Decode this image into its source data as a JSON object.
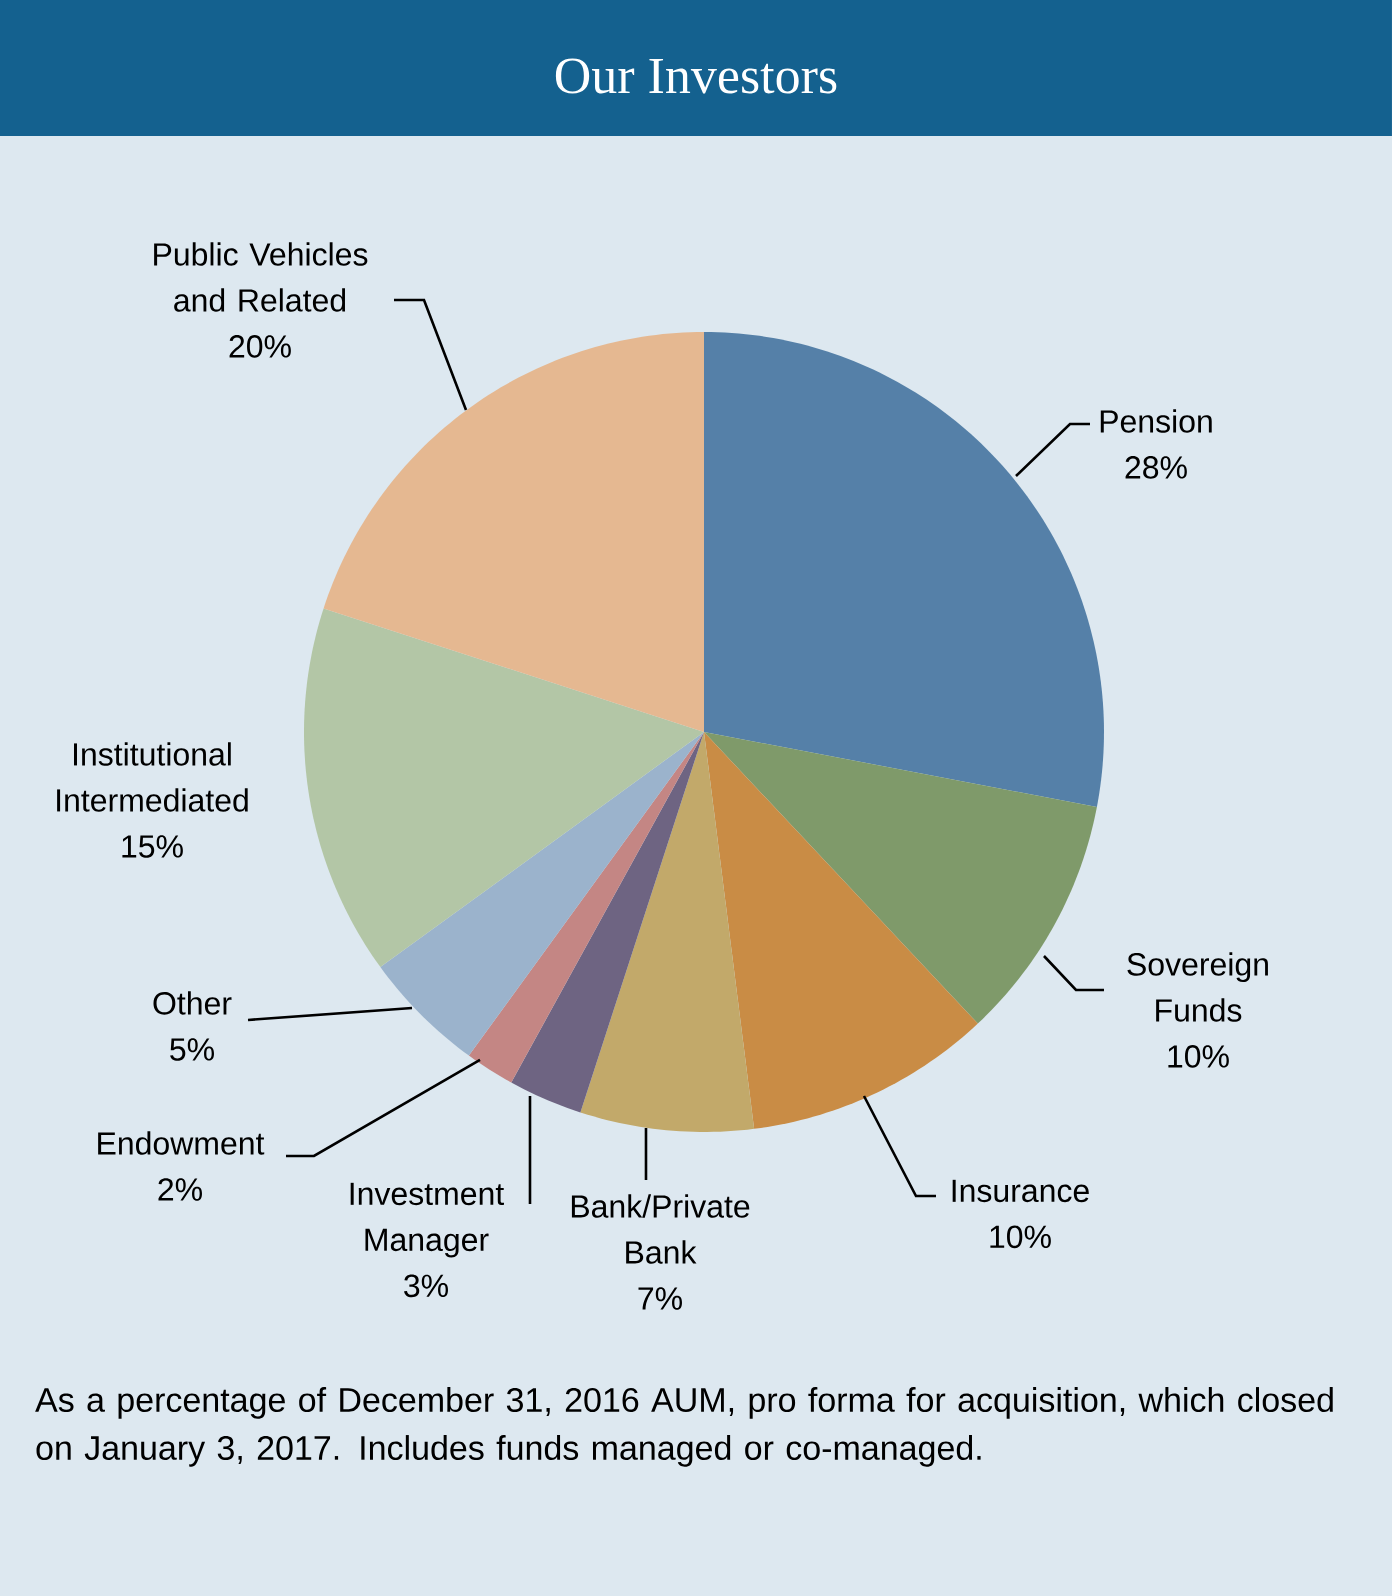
{
  "chart_data": {
    "type": "pie",
    "title": "Our Investors",
    "categories": [
      "Pension",
      "Sovereign Funds",
      "Insurance",
      "Bank/Private Bank",
      "Investment Manager",
      "Endowment",
      "Other",
      "Institutional Intermediated",
      "Public Vehicles and Related"
    ],
    "values": [
      28,
      10,
      10,
      7,
      3,
      2,
      5,
      15,
      20
    ],
    "value_labels": [
      "28%",
      "10%",
      "10%",
      "7%",
      "3%",
      "2%",
      "5%",
      "15%",
      "20%"
    ],
    "colors": [
      "#5580a8",
      "#7f9a6a",
      "#c98c45",
      "#c2a96a",
      "#6e6482",
      "#c48684",
      "#9bb3cc",
      "#b3c6a6",
      "#e5b891"
    ],
    "annotations": [
      "As a percentage of December 31, 2016 AUM, pro forma for acquisition, which closed on January 3, 2017. Includes funds managed or co-managed."
    ]
  }
}
